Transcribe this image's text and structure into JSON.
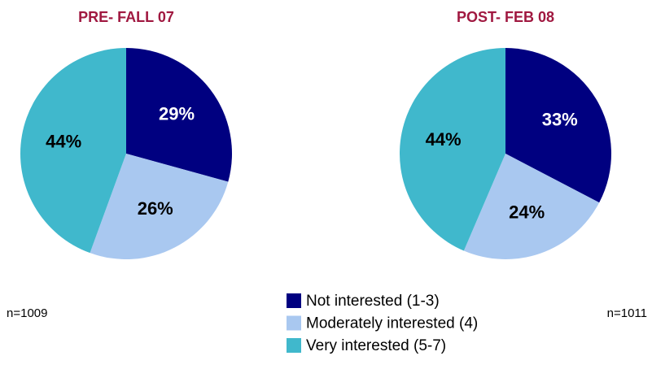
{
  "chart_data": [
    {
      "type": "pie",
      "title": "PRE- FALL 07",
      "note": "n=1009",
      "categories": [
        "Not interested (1-3)",
        "Moderately interested (4)",
        "Very interested (5-7)"
      ],
      "values": [
        29,
        26,
        44
      ],
      "value_labels": [
        "29%",
        "26%",
        "44%"
      ],
      "colors": [
        "#000080",
        "#a9c8f0",
        "#40b8cc"
      ],
      "label_colors": [
        "#ffffff",
        "#000000",
        "#000000"
      ]
    },
    {
      "type": "pie",
      "title": "POST- FEB 08",
      "note": "n=1011",
      "categories": [
        "Not interested (1-3)",
        "Moderately interested (4)",
        "Very interested (5-7)"
      ],
      "values": [
        33,
        24,
        44
      ],
      "value_labels": [
        "33%",
        "24%",
        "44%"
      ],
      "colors": [
        "#000080",
        "#a9c8f0",
        "#40b8cc"
      ],
      "label_colors": [
        "#ffffff",
        "#000000",
        "#000000"
      ]
    }
  ]
}
